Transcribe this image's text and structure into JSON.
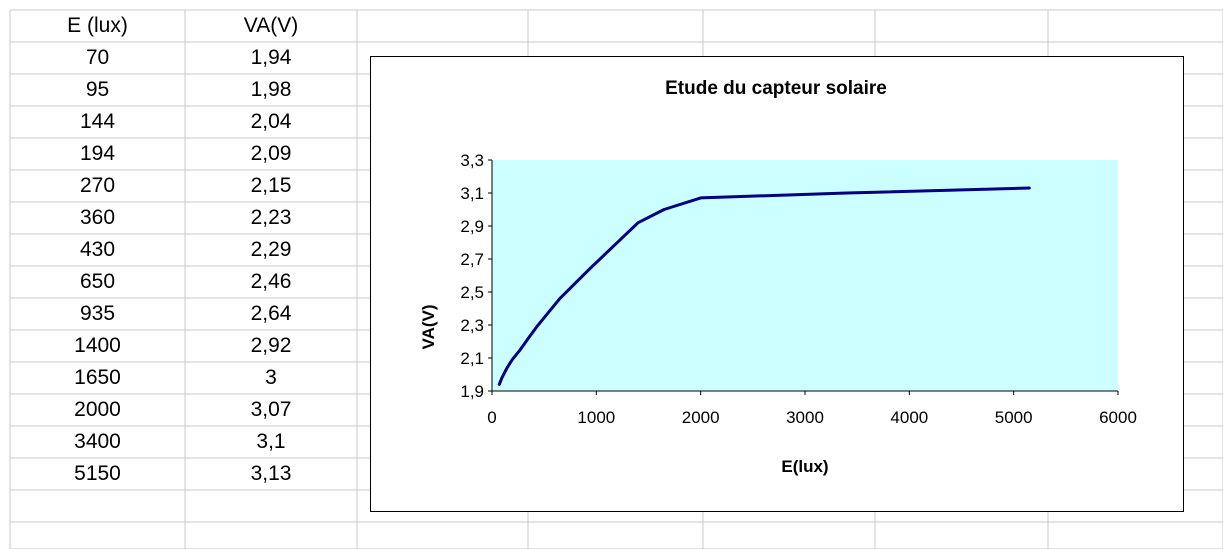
{
  "table": {
    "headers": [
      "E (lux)",
      "VA(V)"
    ],
    "rows": [
      [
        "70",
        "1,94"
      ],
      [
        "95",
        "1,98"
      ],
      [
        "144",
        "2,04"
      ],
      [
        "194",
        "2,09"
      ],
      [
        "270",
        "2,15"
      ],
      [
        "360",
        "2,23"
      ],
      [
        "430",
        "2,29"
      ],
      [
        "650",
        "2,46"
      ],
      [
        "935",
        "2,64"
      ],
      [
        "1400",
        "2,92"
      ],
      [
        "1650",
        "3"
      ],
      [
        "2000",
        "3,07"
      ],
      [
        "3400",
        "3,1"
      ],
      [
        "5150",
        "3,13"
      ]
    ]
  },
  "chart_data": {
    "type": "line",
    "title": "Etude du capteur solaire",
    "xlabel": "E(lux)",
    "ylabel": "VA(V)",
    "xlim": [
      0,
      6000
    ],
    "ylim": [
      1.9,
      3.3
    ],
    "x_ticks": [
      "0",
      "1000",
      "2000",
      "3000",
      "4000",
      "5000",
      "6000"
    ],
    "y_ticks": [
      "1,9",
      "2,1",
      "2,3",
      "2,5",
      "2,7",
      "2,9",
      "3,1",
      "3,3"
    ],
    "plot_background": "#ccffff",
    "line_color": "#000080",
    "grid": false,
    "legend": "none",
    "series": [
      {
        "x": [
          70,
          95,
          144,
          194,
          270,
          360,
          430,
          650,
          935,
          1400,
          1650,
          2000,
          3400,
          5150
        ],
        "y": [
          1.94,
          1.98,
          2.04,
          2.09,
          2.15,
          2.23,
          2.29,
          2.46,
          2.64,
          2.92,
          3.0,
          3.07,
          3.1,
          3.13
        ]
      }
    ]
  }
}
